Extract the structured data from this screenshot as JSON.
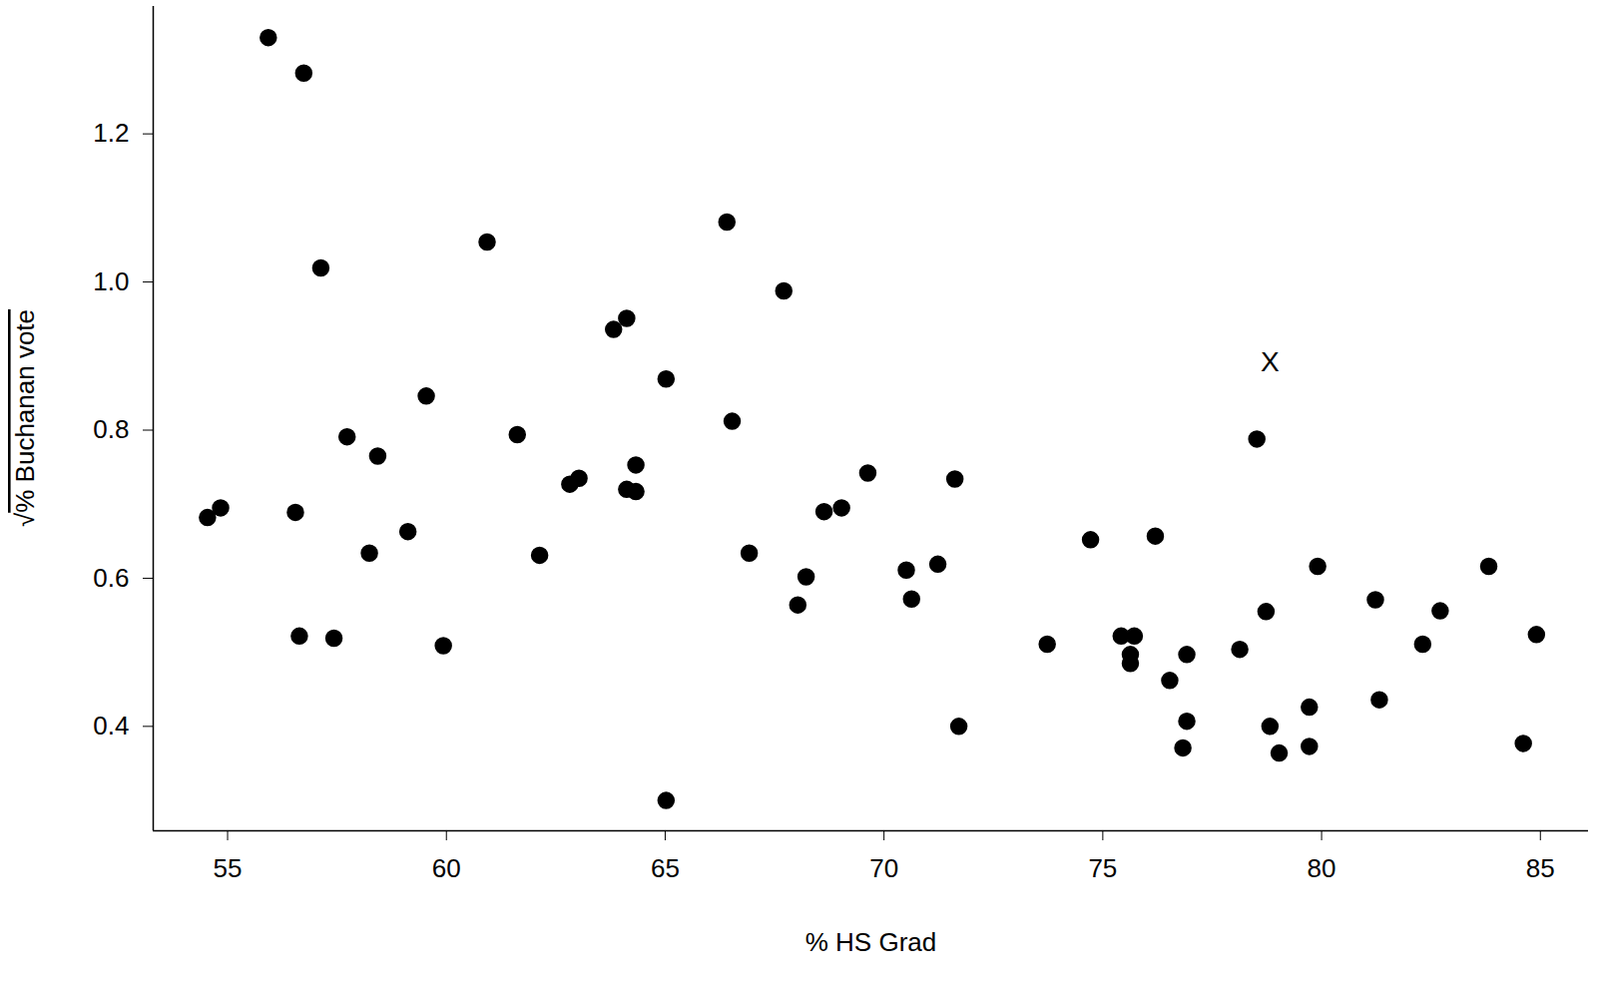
{
  "chart_data": {
    "type": "scatter",
    "x_label": "% HS Grad",
    "y_label": "√% Buchanan vote",
    "x": [
      54.54,
      54.84,
      55.93,
      56.74,
      57.13,
      56.55,
      56.64,
      57.43,
      57.73,
      58.43,
      58.24,
      59.12,
      59.54,
      59.93,
      60.93,
      61.62,
      62.13,
      62.82,
      63.03,
      63.82,
      64.12,
      64.12,
      64.33,
      64.33,
      65.02,
      65.02,
      66.41,
      66.53,
      66.92,
      67.71,
      68.03,
      68.22,
      68.63,
      69.03,
      69.63,
      70.51,
      70.63,
      71.23,
      71.62,
      71.71,
      73.73,
      74.72,
      75.42,
      75.72,
      75.63,
      75.63,
      76.2,
      76.53,
      76.92,
      76.92,
      76.83,
      78.13,
      78.52,
      78.73,
      78.82,
      79.03,
      79.72,
      79.72,
      79.91,
      81.23,
      81.32,
      82.31,
      82.71,
      83.82,
      84.61,
      84.91
    ],
    "y": [
      0.682,
      0.695,
      1.33,
      1.282,
      1.019,
      0.689,
      0.522,
      0.519,
      0.791,
      0.765,
      0.634,
      0.663,
      0.846,
      0.509,
      1.054,
      0.794,
      0.631,
      0.727,
      0.735,
      0.936,
      0.951,
      0.72,
      0.753,
      0.717,
      0.869,
      0.3,
      1.081,
      0.812,
      0.634,
      0.988,
      0.564,
      0.602,
      0.69,
      0.695,
      0.742,
      0.611,
      0.572,
      0.619,
      0.734,
      0.4,
      0.511,
      0.652,
      0.522,
      0.522,
      0.497,
      0.485,
      0.657,
      0.462,
      0.497,
      0.407,
      0.371,
      0.504,
      0.788,
      0.555,
      0.4,
      0.364,
      0.426,
      0.373,
      0.616,
      0.571,
      0.436,
      0.511,
      0.556,
      0.616,
      0.377,
      0.524
    ],
    "color": "#000000",
    "marker": "circle",
    "xlim": [
      53.3,
      86.1
    ],
    "ylim": [
      0.259,
      1.372
    ],
    "xticks": [
      55,
      60,
      65,
      70,
      75,
      80,
      85
    ],
    "yticks": [
      0.4,
      0.6,
      0.8,
      {
        "value": 1,
        "label": "1.0"
      },
      1.2
    ],
    "annotations": [
      {
        "x": 78.82,
        "y": 0.891,
        "text": "X"
      }
    ]
  }
}
